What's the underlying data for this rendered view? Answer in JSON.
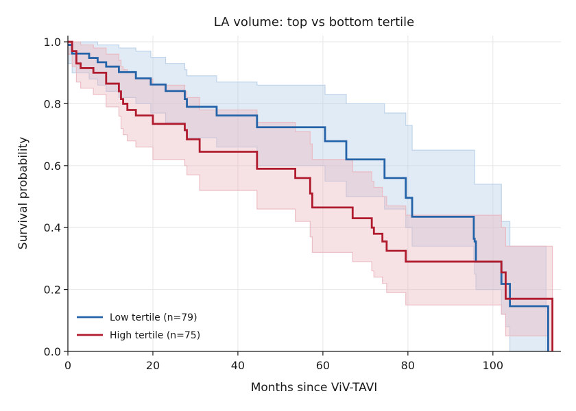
{
  "chart_data": {
    "type": "line",
    "title": "LA volume: top vs bottom tertile",
    "xlabel": "Months since ViV-TAVI",
    "ylabel": "Survival probability",
    "xlim": [
      0,
      116
    ],
    "ylim": [
      0,
      1.02
    ],
    "xticks": [
      0,
      20,
      40,
      60,
      80,
      100
    ],
    "yticks": [
      0.0,
      0.2,
      0.4,
      0.6,
      0.8,
      1.0
    ],
    "grid": true,
    "legend": "lower-left",
    "series": [
      {
        "name": "Low tertile (n=79)",
        "color": "#2563a8",
        "band_color": "#b8cfe8",
        "x": [
          0,
          1,
          5,
          7,
          9,
          12,
          16,
          19.5,
          23,
          27.5,
          28,
          35,
          44.5,
          60.5,
          65.5,
          74.5,
          79.5,
          81,
          95.5,
          95.7,
          96,
          102,
          103,
          104,
          112.5,
          113
        ],
        "y": [
          0.99,
          0.962,
          0.948,
          0.934,
          0.92,
          0.902,
          0.882,
          0.862,
          0.841,
          0.815,
          0.79,
          0.762,
          0.724,
          0.679,
          0.62,
          0.56,
          0.496,
          0.435,
          0.364,
          0.355,
          0.29,
          0.218,
          0.218,
          0.146,
          0.146,
          0.0
        ],
        "lower": [
          0.93,
          0.9,
          0.88,
          0.86,
          0.84,
          0.82,
          0.8,
          0.77,
          0.74,
          0.71,
          0.69,
          0.66,
          0.6,
          0.55,
          0.5,
          0.46,
          0.4,
          0.34,
          0.29,
          0.25,
          0.2,
          0.12,
          0.08,
          0.0,
          0.0,
          0.0
        ],
        "upper": [
          1.0,
          1.0,
          1.0,
          0.99,
          0.99,
          0.98,
          0.97,
          0.95,
          0.93,
          0.91,
          0.89,
          0.87,
          0.86,
          0.83,
          0.8,
          0.77,
          0.73,
          0.65,
          0.65,
          0.54,
          0.54,
          0.42,
          0.42,
          0.34,
          0.0,
          0.0
        ]
      },
      {
        "name": "High tertile (n=75)",
        "color": "#b01c2e",
        "band_color": "#eab8c0",
        "x": [
          0,
          1,
          2,
          3,
          6,
          9,
          12,
          12.5,
          13,
          14,
          16,
          20,
          27.5,
          28,
          31,
          44.5,
          53.5,
          57,
          57.5,
          67,
          71.5,
          72,
          74,
          75,
          79.5,
          102,
          103,
          113,
          114
        ],
        "y": [
          1.0,
          0.97,
          0.93,
          0.915,
          0.9,
          0.865,
          0.84,
          0.815,
          0.8,
          0.78,
          0.762,
          0.735,
          0.715,
          0.685,
          0.645,
          0.59,
          0.56,
          0.51,
          0.465,
          0.43,
          0.4,
          0.38,
          0.355,
          0.325,
          0.29,
          0.255,
          0.17,
          0.17,
          0.0
        ],
        "lower": [
          0.96,
          0.92,
          0.87,
          0.85,
          0.83,
          0.79,
          0.76,
          0.72,
          0.7,
          0.68,
          0.66,
          0.62,
          0.6,
          0.57,
          0.52,
          0.46,
          0.42,
          0.37,
          0.32,
          0.29,
          0.26,
          0.24,
          0.22,
          0.19,
          0.15,
          0.12,
          0.05,
          0.0,
          0.0
        ],
        "upper": [
          1.0,
          1.0,
          1.0,
          0.99,
          0.98,
          0.96,
          0.94,
          0.92,
          0.91,
          0.9,
          0.88,
          0.86,
          0.84,
          0.82,
          0.78,
          0.74,
          0.71,
          0.67,
          0.62,
          0.58,
          0.55,
          0.53,
          0.5,
          0.47,
          0.44,
          0.4,
          0.34,
          0.34,
          0.0
        ]
      }
    ]
  }
}
